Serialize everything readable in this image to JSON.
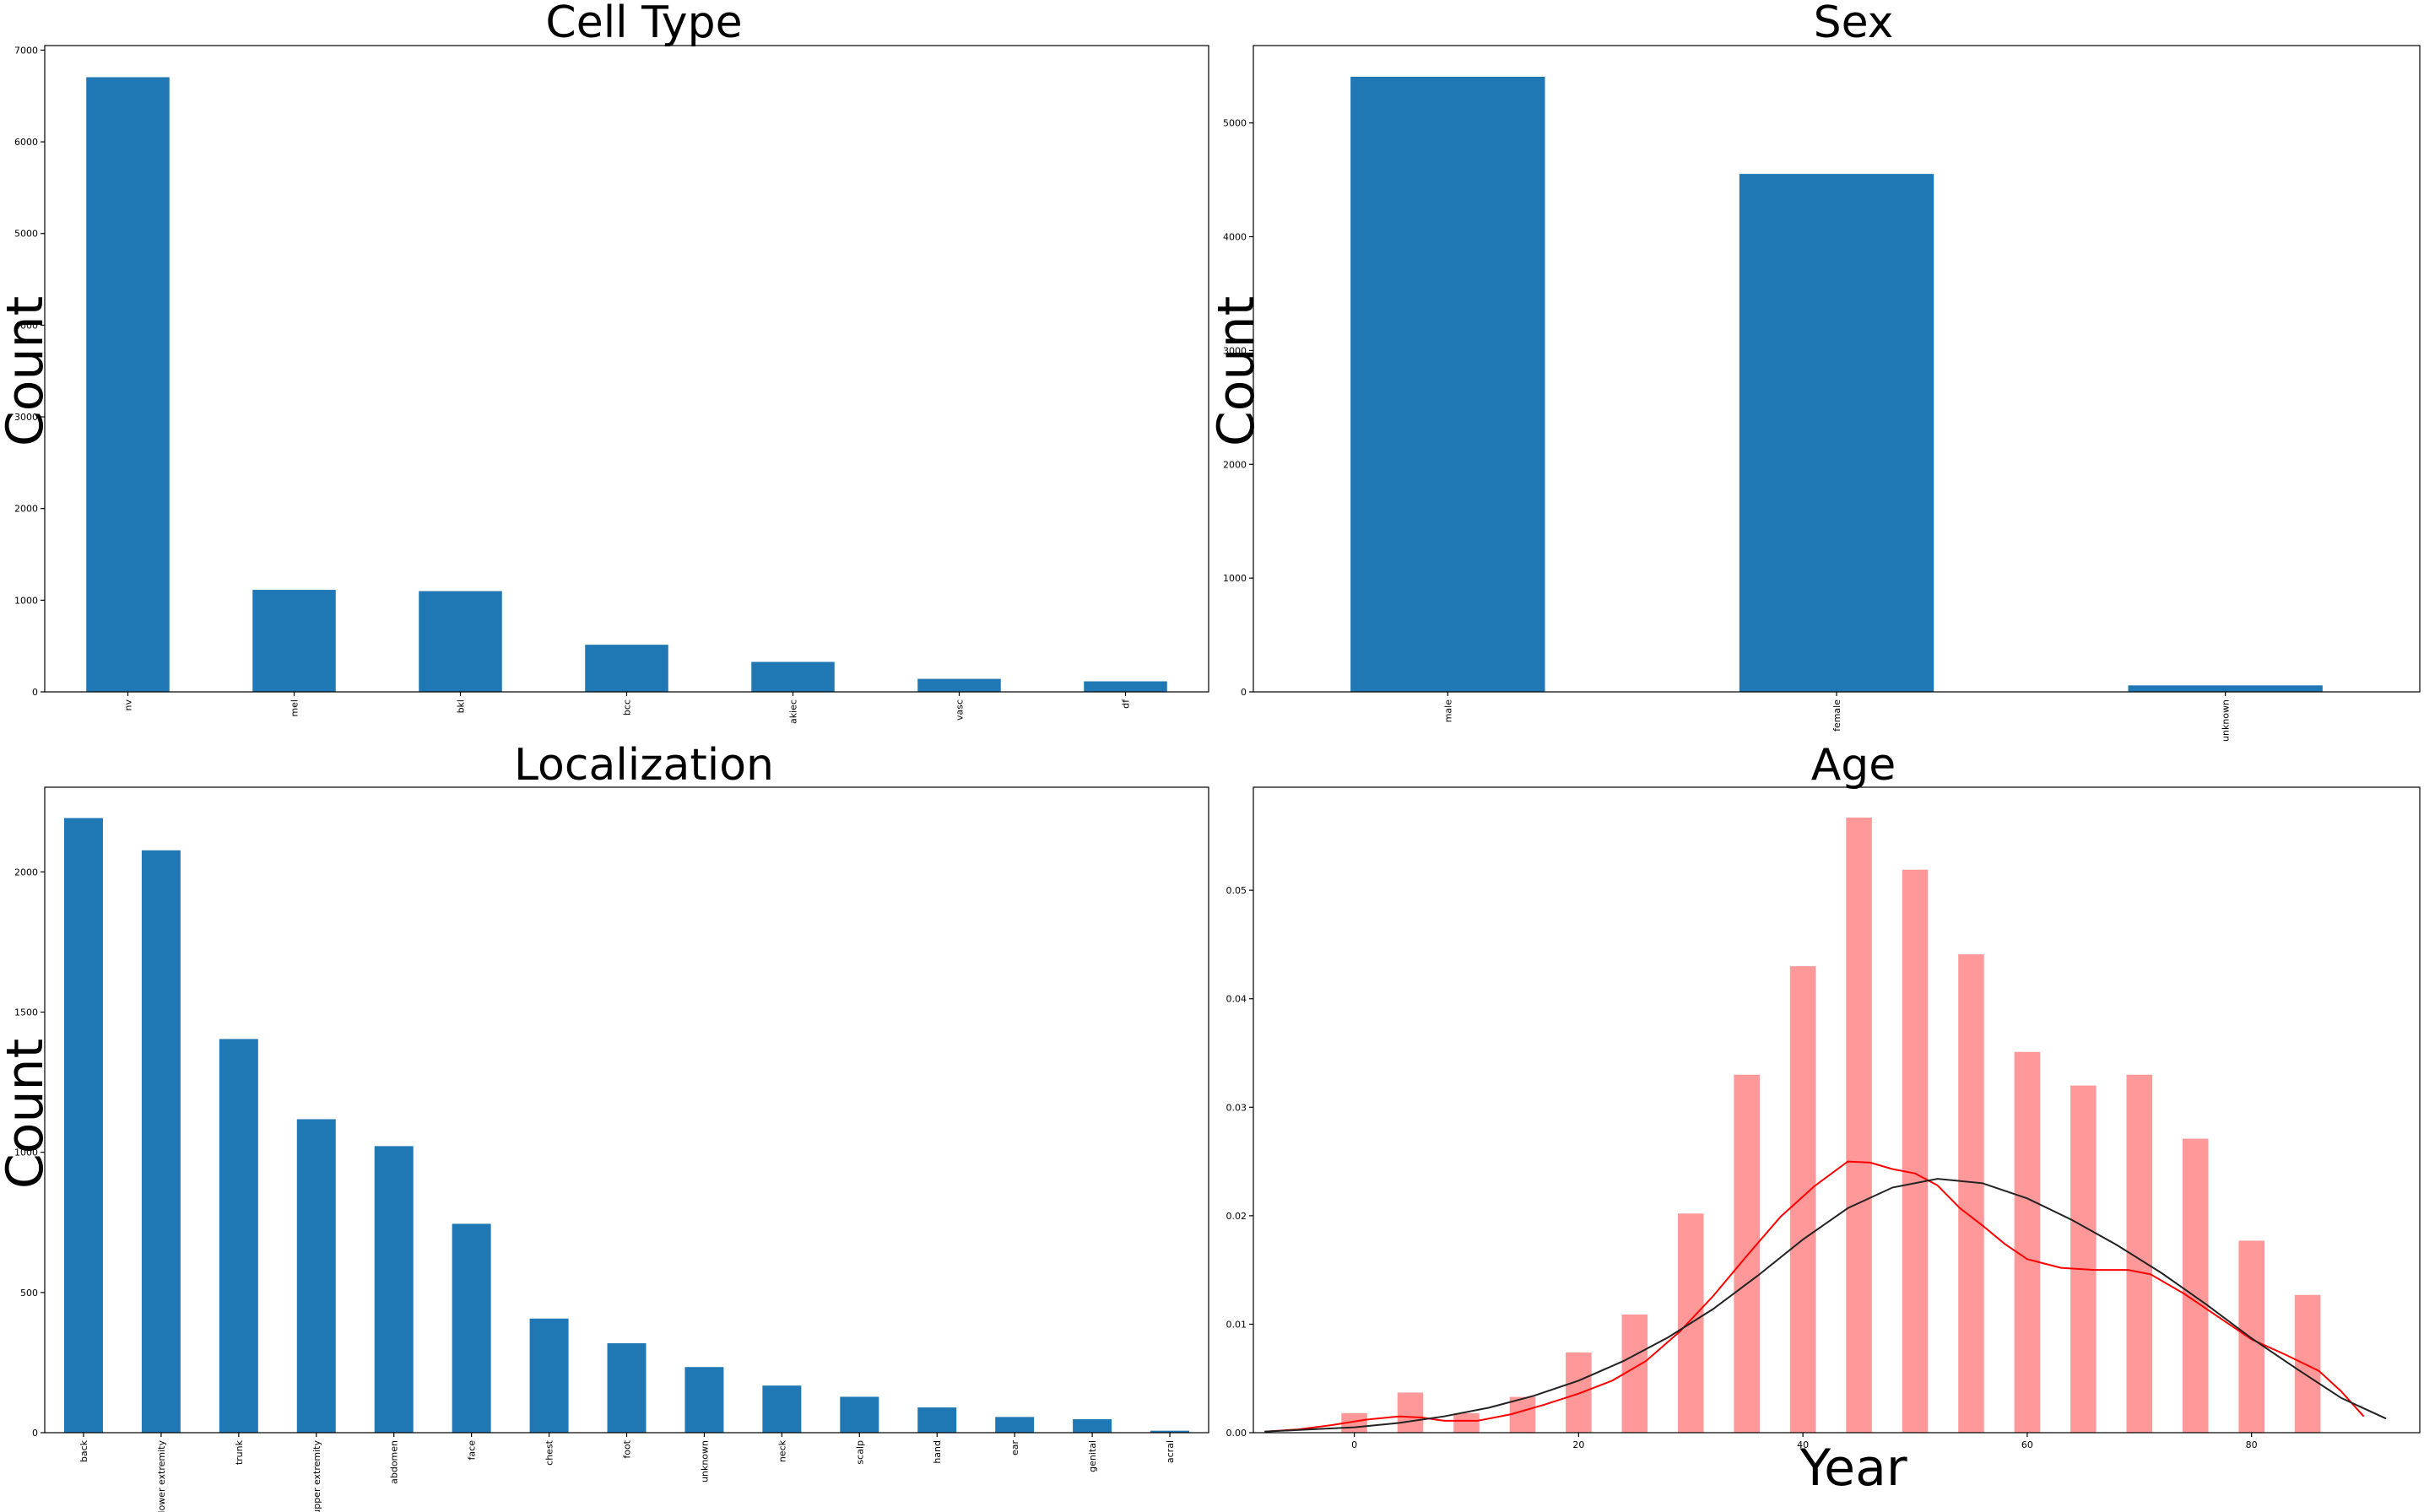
{
  "chart_data": [
    {
      "type": "bar",
      "title": "Cell Type",
      "xlabel": "",
      "ylabel": "Count",
      "categories": [
        "nv",
        "mel",
        "bkl",
        "bcc",
        "akiec",
        "vasc",
        "df"
      ],
      "values": [
        6705,
        1113,
        1099,
        514,
        327,
        142,
        115
      ],
      "ylim": [
        0,
        7050
      ],
      "yticks": [
        "0",
        "1000",
        "2000",
        "3000",
        "4000",
        "5000",
        "6000",
        "7000"
      ],
      "color": "#1f77b4"
    },
    {
      "type": "bar",
      "title": "Sex",
      "xlabel": "",
      "ylabel": "Count",
      "categories": [
        "male",
        "female",
        "unknown"
      ],
      "values": [
        5406,
        4552,
        57
      ],
      "ylim": [
        0,
        5680
      ],
      "yticks": [
        "0",
        "1000",
        "2000",
        "3000",
        "4000",
        "5000"
      ],
      "color": "#1f77b4"
    },
    {
      "type": "bar",
      "title": "Localization",
      "xlabel": "",
      "ylabel": "Count",
      "categories": [
        "back",
        "lower extremity",
        "trunk",
        "upper extremity",
        "abdomen",
        "face",
        "chest",
        "foot",
        "unknown",
        "neck",
        "scalp",
        "hand",
        "ear",
        "genital",
        "acral"
      ],
      "values": [
        2192,
        2077,
        1404,
        1118,
        1022,
        745,
        407,
        319,
        234,
        168,
        128,
        90,
        56,
        48,
        7
      ],
      "ylim": [
        0,
        2302
      ],
      "yticks": [
        "0",
        "500",
        "1000",
        "1500",
        "2000"
      ],
      "color": "#1f77b4"
    },
    {
      "type": "histogram",
      "title": "Age",
      "xlabel": "Year",
      "ylabel": "",
      "xlim": [
        -9,
        95
      ],
      "ylim": [
        0,
        0.0595
      ],
      "xticks": [
        "0",
        "20",
        "40",
        "60",
        "80"
      ],
      "yticks": [
        "0.00",
        "0.01",
        "0.02",
        "0.03",
        "0.04",
        "0.05"
      ],
      "bars": {
        "x": [
          0,
          5,
          10,
          15,
          20,
          25,
          30,
          35,
          40,
          45,
          50,
          55,
          60,
          65,
          70,
          75,
          80,
          85
        ],
        "values": [
          0.0018,
          0.0037,
          0.0018,
          0.0033,
          0.0074,
          0.0109,
          0.0202,
          0.033,
          0.043,
          0.0567,
          0.0519,
          0.0441,
          0.0351,
          0.032,
          0.033,
          0.0271,
          0.0177,
          0.0127
        ],
        "width": 2.3,
        "color": "#ff9999"
      },
      "series": [
        {
          "type": "line",
          "color": "#ff0000",
          "x": [
            -8,
            -5,
            -2,
            1,
            4,
            6,
            8,
            11,
            14,
            17,
            20,
            23,
            26,
            29,
            32,
            35,
            38,
            41,
            44,
            46,
            48,
            50,
            52,
            54,
            56,
            58,
            60,
            63,
            66,
            69,
            71,
            74,
            77,
            80,
            83,
            86,
            88,
            90
          ],
          "values": [
            0.0001,
            0.0003,
            0.0007,
            0.0012,
            0.0015,
            0.0014,
            0.0011,
            0.0011,
            0.0017,
            0.0026,
            0.0036,
            0.0048,
            0.0066,
            0.0093,
            0.0126,
            0.0163,
            0.0199,
            0.0227,
            0.025,
            0.0249,
            0.0243,
            0.0239,
            0.0228,
            0.0207,
            0.0191,
            0.0174,
            0.016,
            0.0152,
            0.015,
            0.015,
            0.0146,
            0.0128,
            0.0107,
            0.0086,
            0.0072,
            0.0057,
            0.0038,
            0.0015
          ]
        },
        {
          "type": "line",
          "color": "#222222",
          "x": [
            -8,
            -4,
            0,
            4,
            8,
            12,
            16,
            20,
            24,
            28,
            32,
            36,
            40,
            44,
            48,
            52,
            56,
            60,
            64,
            68,
            72,
            76,
            80,
            84,
            88,
            92
          ],
          "values": [
            0.0001,
            0.0003,
            0.0005,
            0.0009,
            0.0015,
            0.0023,
            0.0034,
            0.0048,
            0.0066,
            0.0088,
            0.0114,
            0.0145,
            0.0178,
            0.0207,
            0.0226,
            0.0234,
            0.023,
            0.0216,
            0.0196,
            0.0173,
            0.0147,
            0.0118,
            0.0087,
            0.0059,
            0.0032,
            0.0013
          ]
        }
      ]
    }
  ]
}
